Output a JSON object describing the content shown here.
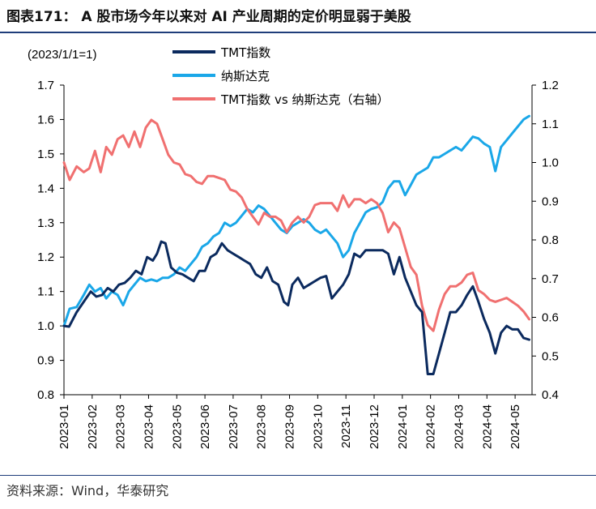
{
  "header": {
    "title": "图表171： A 股市场今年以来对 AI 产业周期的定价明显弱于美股"
  },
  "footer": {
    "source": "资料来源：Wind，华泰研究"
  },
  "chart_data": {
    "type": "line",
    "subtitle": "(2023/1/1=1)",
    "left_axis": {
      "ylim": [
        0.8,
        1.7
      ],
      "ticks": [
        "0.8",
        "0.9",
        "1.0",
        "1.1",
        "1.2",
        "1.3",
        "1.4",
        "1.5",
        "1.6",
        "1.7"
      ]
    },
    "right_axis": {
      "ylim": [
        0.4,
        1.2
      ],
      "ticks": [
        "0.4",
        "0.5",
        "0.6",
        "0.7",
        "0.8",
        "0.9",
        "1.0",
        "1.1",
        "1.2"
      ]
    },
    "x_range": [
      0,
      16.6
    ],
    "x_ticks": [
      "2023-01",
      "2023-02",
      "2023-03",
      "2023-04",
      "2023-05",
      "2023-06",
      "2023-07",
      "2023-08",
      "2023-09",
      "2023-10",
      "2023-11",
      "2023-12",
      "2024-01",
      "2024-02",
      "2024-03",
      "2024-04",
      "2024-05"
    ],
    "legend_position": "top-center",
    "series": [
      {
        "name": "TMT指数",
        "axis": "left",
        "color": "#0b2a5e",
        "points": [
          [
            0.0,
            1.0
          ],
          [
            0.18,
            0.998
          ],
          [
            0.45,
            1.04
          ],
          [
            0.7,
            1.07
          ],
          [
            0.95,
            1.1
          ],
          [
            1.15,
            1.085
          ],
          [
            1.35,
            1.09
          ],
          [
            1.55,
            1.11
          ],
          [
            1.75,
            1.1
          ],
          [
            1.95,
            1.12
          ],
          [
            2.15,
            1.125
          ],
          [
            2.35,
            1.14
          ],
          [
            2.55,
            1.16
          ],
          [
            2.75,
            1.15
          ],
          [
            2.95,
            1.2
          ],
          [
            3.15,
            1.19
          ],
          [
            3.3,
            1.21
          ],
          [
            3.45,
            1.245
          ],
          [
            3.6,
            1.24
          ],
          [
            3.8,
            1.17
          ],
          [
            4.0,
            1.155
          ],
          [
            4.2,
            1.15
          ],
          [
            4.4,
            1.14
          ],
          [
            4.6,
            1.13
          ],
          [
            4.8,
            1.16
          ],
          [
            5.0,
            1.16
          ],
          [
            5.2,
            1.2
          ],
          [
            5.4,
            1.21
          ],
          [
            5.6,
            1.24
          ],
          [
            5.8,
            1.22
          ],
          [
            6.0,
            1.21
          ],
          [
            6.2,
            1.2
          ],
          [
            6.4,
            1.19
          ],
          [
            6.6,
            1.18
          ],
          [
            6.8,
            1.15
          ],
          [
            7.0,
            1.14
          ],
          [
            7.2,
            1.17
          ],
          [
            7.4,
            1.13
          ],
          [
            7.6,
            1.12
          ],
          [
            7.8,
            1.07
          ],
          [
            7.95,
            1.06
          ],
          [
            8.1,
            1.12
          ],
          [
            8.3,
            1.14
          ],
          [
            8.5,
            1.11
          ],
          [
            8.7,
            1.12
          ],
          [
            8.9,
            1.13
          ],
          [
            9.1,
            1.14
          ],
          [
            9.3,
            1.145
          ],
          [
            9.5,
            1.08
          ],
          [
            9.7,
            1.1
          ],
          [
            9.9,
            1.12
          ],
          [
            10.1,
            1.15
          ],
          [
            10.3,
            1.21
          ],
          [
            10.5,
            1.2
          ],
          [
            10.7,
            1.22
          ],
          [
            10.9,
            1.22
          ],
          [
            11.1,
            1.22
          ],
          [
            11.3,
            1.22
          ],
          [
            11.5,
            1.21
          ],
          [
            11.7,
            1.15
          ],
          [
            11.9,
            1.2
          ],
          [
            12.1,
            1.14
          ],
          [
            12.3,
            1.1
          ],
          [
            12.5,
            1.06
          ],
          [
            12.7,
            1.04
          ],
          [
            12.9,
            0.86
          ],
          [
            13.1,
            0.86
          ],
          [
            13.3,
            0.92
          ],
          [
            13.5,
            0.98
          ],
          [
            13.7,
            1.04
          ],
          [
            13.9,
            1.04
          ],
          [
            14.1,
            1.06
          ],
          [
            14.3,
            1.09
          ],
          [
            14.5,
            1.115
          ],
          [
            14.7,
            1.07
          ],
          [
            14.9,
            1.02
          ],
          [
            15.1,
            0.98
          ],
          [
            15.3,
            0.92
          ],
          [
            15.5,
            0.98
          ],
          [
            15.7,
            1.0
          ],
          [
            15.9,
            0.99
          ],
          [
            16.1,
            0.99
          ],
          [
            16.3,
            0.965
          ],
          [
            16.5,
            0.96
          ]
        ]
      },
      {
        "name": "纳斯达克",
        "axis": "left",
        "color": "#1aa7e8",
        "points": [
          [
            0.0,
            1.0
          ],
          [
            0.2,
            1.05
          ],
          [
            0.45,
            1.055
          ],
          [
            0.7,
            1.09
          ],
          [
            0.9,
            1.12
          ],
          [
            1.1,
            1.1
          ],
          [
            1.3,
            1.11
          ],
          [
            1.5,
            1.08
          ],
          [
            1.7,
            1.1
          ],
          [
            1.9,
            1.09
          ],
          [
            2.1,
            1.06
          ],
          [
            2.3,
            1.1
          ],
          [
            2.5,
            1.12
          ],
          [
            2.7,
            1.14
          ],
          [
            2.9,
            1.13
          ],
          [
            3.1,
            1.135
          ],
          [
            3.3,
            1.13
          ],
          [
            3.5,
            1.14
          ],
          [
            3.7,
            1.14
          ],
          [
            3.9,
            1.15
          ],
          [
            4.1,
            1.17
          ],
          [
            4.3,
            1.16
          ],
          [
            4.5,
            1.18
          ],
          [
            4.7,
            1.2
          ],
          [
            4.9,
            1.23
          ],
          [
            5.1,
            1.24
          ],
          [
            5.3,
            1.26
          ],
          [
            5.5,
            1.27
          ],
          [
            5.7,
            1.3
          ],
          [
            5.9,
            1.29
          ],
          [
            6.1,
            1.3
          ],
          [
            6.3,
            1.32
          ],
          [
            6.5,
            1.34
          ],
          [
            6.7,
            1.33
          ],
          [
            6.9,
            1.35
          ],
          [
            7.1,
            1.34
          ],
          [
            7.3,
            1.32
          ],
          [
            7.5,
            1.3
          ],
          [
            7.7,
            1.28
          ],
          [
            7.9,
            1.27
          ],
          [
            8.1,
            1.29
          ],
          [
            8.3,
            1.3
          ],
          [
            8.5,
            1.31
          ],
          [
            8.7,
            1.3
          ],
          [
            8.9,
            1.28
          ],
          [
            9.1,
            1.27
          ],
          [
            9.3,
            1.28
          ],
          [
            9.5,
            1.26
          ],
          [
            9.7,
            1.24
          ],
          [
            9.9,
            1.2
          ],
          [
            10.1,
            1.22
          ],
          [
            10.3,
            1.27
          ],
          [
            10.5,
            1.3
          ],
          [
            10.7,
            1.33
          ],
          [
            10.9,
            1.34
          ],
          [
            11.1,
            1.345
          ],
          [
            11.3,
            1.36
          ],
          [
            11.5,
            1.4
          ],
          [
            11.7,
            1.42
          ],
          [
            11.9,
            1.42
          ],
          [
            12.1,
            1.38
          ],
          [
            12.3,
            1.41
          ],
          [
            12.5,
            1.44
          ],
          [
            12.7,
            1.45
          ],
          [
            12.9,
            1.46
          ],
          [
            13.1,
            1.49
          ],
          [
            13.3,
            1.49
          ],
          [
            13.5,
            1.5
          ],
          [
            13.7,
            1.51
          ],
          [
            13.9,
            1.52
          ],
          [
            14.1,
            1.51
          ],
          [
            14.3,
            1.53
          ],
          [
            14.5,
            1.55
          ],
          [
            14.7,
            1.545
          ],
          [
            14.9,
            1.53
          ],
          [
            15.1,
            1.52
          ],
          [
            15.3,
            1.45
          ],
          [
            15.5,
            1.52
          ],
          [
            15.7,
            1.54
          ],
          [
            15.9,
            1.56
          ],
          [
            16.1,
            1.58
          ],
          [
            16.3,
            1.6
          ],
          [
            16.5,
            1.61
          ]
        ]
      },
      {
        "name": "TMT指数 vs 纳斯达克（右轴）",
        "axis": "right",
        "color": "#f07070",
        "points": [
          [
            0.0,
            1.0
          ],
          [
            0.2,
            0.955
          ],
          [
            0.45,
            0.99
          ],
          [
            0.7,
            0.975
          ],
          [
            0.9,
            0.985
          ],
          [
            1.1,
            1.03
          ],
          [
            1.3,
            0.975
          ],
          [
            1.5,
            1.04
          ],
          [
            1.7,
            1.02
          ],
          [
            1.9,
            1.06
          ],
          [
            2.1,
            1.07
          ],
          [
            2.3,
            1.04
          ],
          [
            2.5,
            1.08
          ],
          [
            2.7,
            1.04
          ],
          [
            2.9,
            1.09
          ],
          [
            3.1,
            1.11
          ],
          [
            3.3,
            1.1
          ],
          [
            3.5,
            1.06
          ],
          [
            3.7,
            1.02
          ],
          [
            3.9,
            1.0
          ],
          [
            4.1,
            0.995
          ],
          [
            4.3,
            0.97
          ],
          [
            4.5,
            0.965
          ],
          [
            4.7,
            0.95
          ],
          [
            4.9,
            0.945
          ],
          [
            5.1,
            0.965
          ],
          [
            5.3,
            0.965
          ],
          [
            5.5,
            0.96
          ],
          [
            5.7,
            0.955
          ],
          [
            5.9,
            0.93
          ],
          [
            6.1,
            0.925
          ],
          [
            6.3,
            0.91
          ],
          [
            6.5,
            0.88
          ],
          [
            6.7,
            0.86
          ],
          [
            6.9,
            0.84
          ],
          [
            7.1,
            0.87
          ],
          [
            7.3,
            0.86
          ],
          [
            7.5,
            0.86
          ],
          [
            7.7,
            0.85
          ],
          [
            7.9,
            0.82
          ],
          [
            8.1,
            0.845
          ],
          [
            8.3,
            0.86
          ],
          [
            8.5,
            0.845
          ],
          [
            8.7,
            0.86
          ],
          [
            8.9,
            0.89
          ],
          [
            9.1,
            0.895
          ],
          [
            9.3,
            0.895
          ],
          [
            9.5,
            0.895
          ],
          [
            9.7,
            0.875
          ],
          [
            9.9,
            0.915
          ],
          [
            10.1,
            0.885
          ],
          [
            10.3,
            0.905
          ],
          [
            10.5,
            0.905
          ],
          [
            10.7,
            0.895
          ],
          [
            10.9,
            0.905
          ],
          [
            11.1,
            0.895
          ],
          [
            11.3,
            0.87
          ],
          [
            11.5,
            0.82
          ],
          [
            11.7,
            0.845
          ],
          [
            11.9,
            0.83
          ],
          [
            12.1,
            0.78
          ],
          [
            12.3,
            0.73
          ],
          [
            12.5,
            0.71
          ],
          [
            12.7,
            0.63
          ],
          [
            12.9,
            0.58
          ],
          [
            13.1,
            0.565
          ],
          [
            13.3,
            0.62
          ],
          [
            13.5,
            0.66
          ],
          [
            13.7,
            0.68
          ],
          [
            13.9,
            0.68
          ],
          [
            14.1,
            0.69
          ],
          [
            14.3,
            0.71
          ],
          [
            14.5,
            0.715
          ],
          [
            14.7,
            0.67
          ],
          [
            14.9,
            0.66
          ],
          [
            15.1,
            0.645
          ],
          [
            15.3,
            0.64
          ],
          [
            15.5,
            0.645
          ],
          [
            15.7,
            0.65
          ],
          [
            15.9,
            0.64
          ],
          [
            16.1,
            0.63
          ],
          [
            16.3,
            0.615
          ],
          [
            16.5,
            0.595
          ]
        ]
      }
    ]
  }
}
